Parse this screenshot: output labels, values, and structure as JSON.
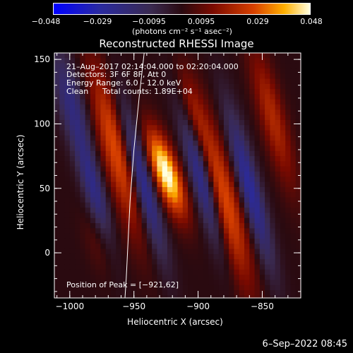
{
  "chart_data": {
    "type": "heatmap",
    "title": "Reconstructed RHESSI Image",
    "xlabel": "Heliocentric X (arcsec)",
    "ylabel": "Heliocentric Y (arcsec)",
    "xlim": [
      -1012,
      -820
    ],
    "ylim": [
      -35,
      155
    ],
    "xticks": [
      -1000,
      -950,
      -900,
      -850
    ],
    "xtick_labels": [
      "−1000",
      "−950",
      "−900",
      "−850"
    ],
    "yticks": [
      0,
      50,
      100,
      150
    ],
    "ytick_labels": [
      "0",
      "50",
      "100",
      "150"
    ],
    "colorbar": {
      "min": -0.048,
      "max": 0.048,
      "ticks": [
        -0.048,
        -0.029,
        -0.0095,
        0.0095,
        0.029,
        0.048
      ],
      "tick_labels": [
        "−0.048",
        "−0.029",
        "−0.0095",
        "0.0095",
        "0.029",
        "0.048"
      ],
      "units": "(photons cm⁻² s⁻¹ asec⁻²)"
    },
    "annotations": {
      "time_range": "21–Aug–2017 02:14:04.000 to 02:20:04.000",
      "detectors": "Detectors: 3F 6F 8F, Att 0",
      "energy_range": "Energy Range: 6.0 – 12.0 keV",
      "method": "Clean",
      "total_counts": "Total counts: 1.89E+04",
      "peak_position": "Position of Peak = [−921,62]"
    },
    "peak": {
      "x": -921,
      "y": 62,
      "value": 0.048
    },
    "limb_curve": {
      "x": [
        -942,
        -946,
        -950,
        -953,
        -955,
        -956,
        -957
      ],
      "y": [
        155,
        120,
        80,
        40,
        0,
        -20,
        -35
      ]
    },
    "components": [
      {
        "x": -925,
        "y": 62,
        "sx": 7,
        "sy": 24,
        "amp": 0.05,
        "angle": -20
      },
      {
        "x": -963,
        "y": 80,
        "sx": 9,
        "sy": 48,
        "amp": 0.03,
        "angle": -15
      },
      {
        "x": -880,
        "y": 40,
        "sx": 9,
        "sy": 48,
        "amp": 0.03,
        "angle": -15
      },
      {
        "x": -905,
        "y": 110,
        "sx": 6,
        "sy": 25,
        "amp": 0.015,
        "angle": -15
      },
      {
        "x": -842,
        "y": 105,
        "sx": 7,
        "sy": 40,
        "amp": 0.02,
        "angle": -15
      },
      {
        "x": -975,
        "y": 10,
        "sx": 8,
        "sy": 20,
        "amp": 0.01,
        "angle": -15
      },
      {
        "x": -945,
        "y": 60,
        "sx": 6,
        "sy": 45,
        "amp": -0.035,
        "angle": -15
      },
      {
        "x": -980,
        "y": 45,
        "sx": 6,
        "sy": 35,
        "amp": -0.025,
        "angle": -15
      },
      {
        "x": -897,
        "y": 58,
        "sx": 6,
        "sy": 42,
        "amp": -0.035,
        "angle": -15
      },
      {
        "x": -860,
        "y": 50,
        "sx": 6,
        "sy": 45,
        "amp": -0.03,
        "angle": -15
      },
      {
        "x": -1000,
        "y": 120,
        "sx": 8,
        "sy": 30,
        "amp": -0.02,
        "angle": -15
      }
    ]
  },
  "footer": {
    "date_label": "6–Sep–2022 08:45"
  }
}
